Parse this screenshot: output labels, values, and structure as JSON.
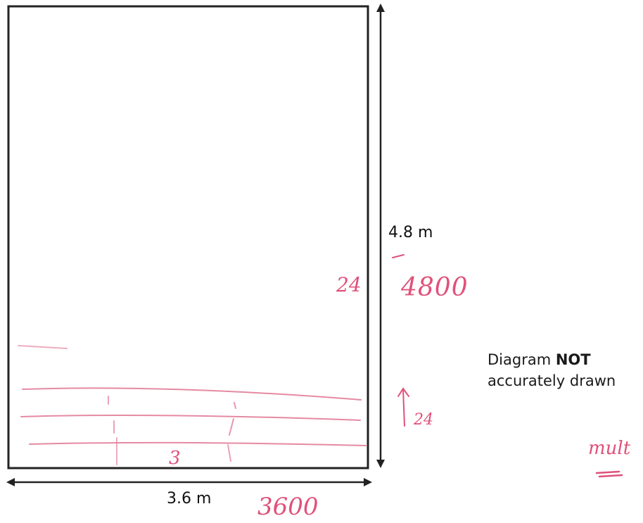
{
  "dimensions": {
    "width_label": "3.6 m",
    "height_label": "4.8 m"
  },
  "note": {
    "prefix": "Diagram",
    "emphasis": "NOT",
    "line2": "accurately drawn"
  },
  "annotations": {
    "width_mm": "3600",
    "height_mm": "4800",
    "tiles_left": "24",
    "tiles_right": "24",
    "count_three": "3",
    "mult": "mult"
  },
  "colors": {
    "outline": "#222222",
    "annotation": "#e0517a"
  }
}
